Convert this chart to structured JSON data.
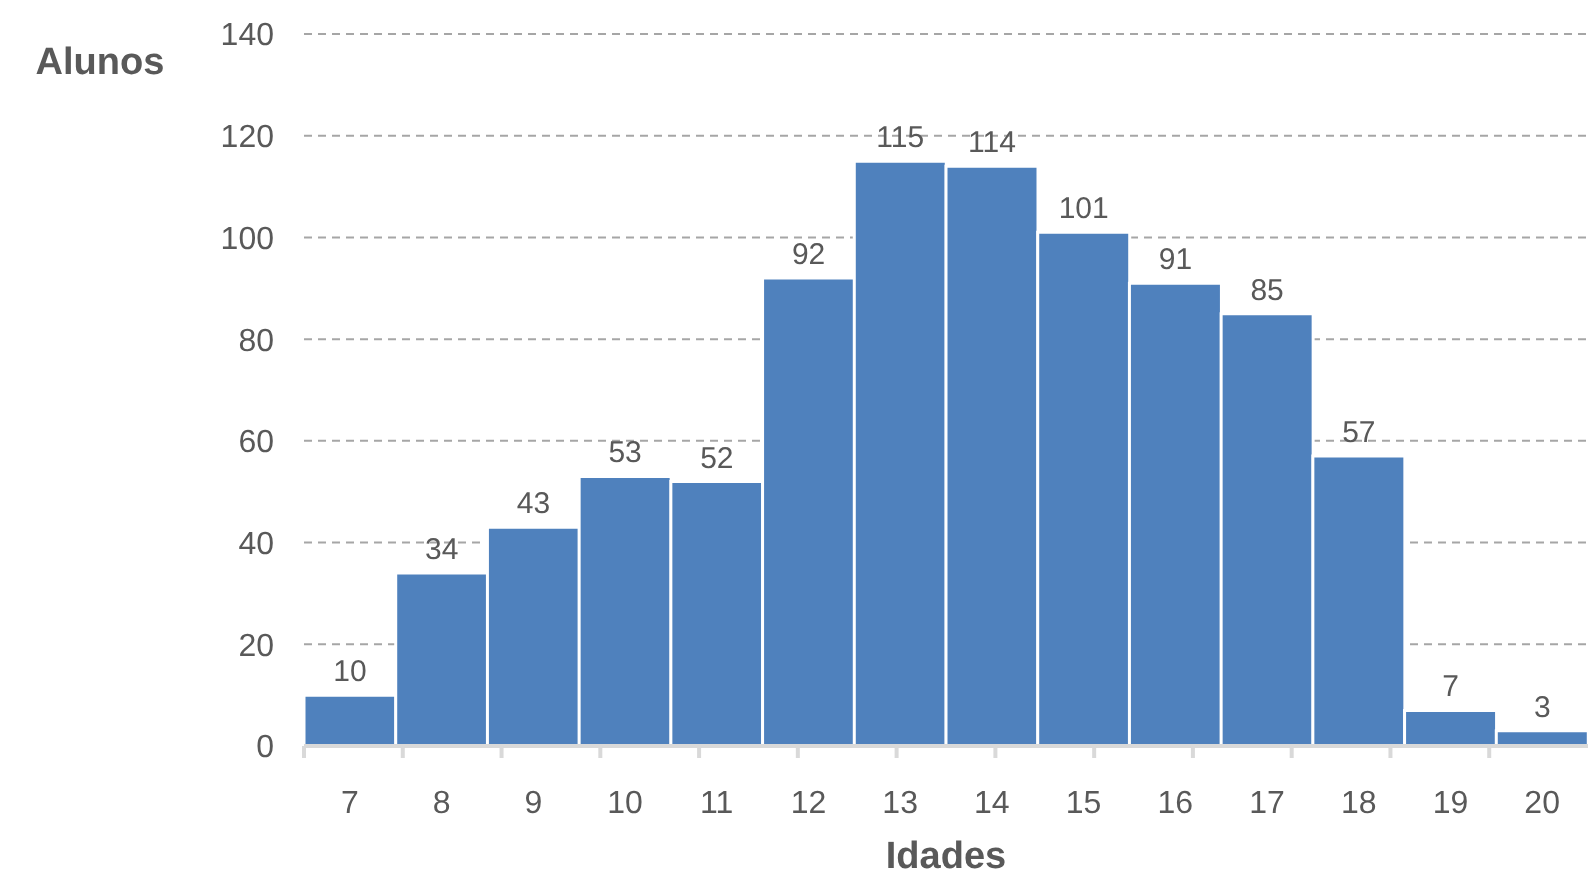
{
  "chart_data": {
    "type": "bar",
    "xlabel": "Idades",
    "ylabel": "Alunos",
    "categories": [
      "7",
      "8",
      "9",
      "10",
      "11",
      "12",
      "13",
      "14",
      "15",
      "16",
      "17",
      "18",
      "19",
      "20"
    ],
    "values": [
      10,
      34,
      43,
      53,
      52,
      92,
      115,
      114,
      101,
      91,
      85,
      57,
      7,
      3
    ],
    "color": "#4f81bd",
    "ylim": [
      0,
      140
    ],
    "yticks": [
      0,
      20,
      40,
      60,
      80,
      100,
      120,
      140
    ],
    "grid": "y",
    "data_labels": true
  }
}
